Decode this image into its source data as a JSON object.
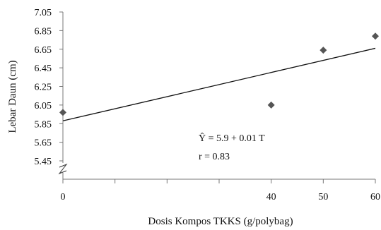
{
  "chart_data": {
    "type": "scatter",
    "title": "",
    "xlabel": "Dosis Kompos TKKS (g/polybag)",
    "ylabel": "Lebar Daun (cm)",
    "x_ticks": [
      "0",
      "40",
      "50",
      "60"
    ],
    "y_ticks": [
      "7.05",
      "6.85",
      "6.65",
      "6.45",
      "6.25",
      "6.05",
      "5.85",
      "5.65",
      "5.45"
    ],
    "xlim": [
      0,
      60
    ],
    "ylim": [
      5.45,
      7.05
    ],
    "axis_break": "y",
    "grid": false,
    "points": [
      {
        "x": 0,
        "y": 5.97
      },
      {
        "x": 40,
        "y": 6.05
      },
      {
        "x": 50,
        "y": 6.64
      },
      {
        "x": 60,
        "y": 6.79
      }
    ],
    "trendline": {
      "intercept": 5.88,
      "slope": 0.013
    },
    "annotations": {
      "equation": "Ŷ = 5.9 + 0.01 T",
      "r_value": "r = 0.83"
    },
    "colors": {
      "marker": "#555555",
      "line": "#111111",
      "axis": "#777777"
    }
  }
}
